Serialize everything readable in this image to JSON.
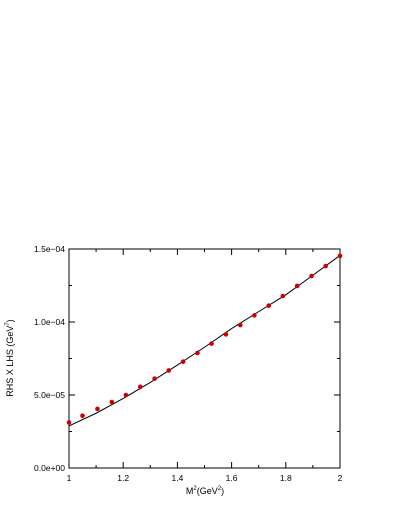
{
  "chart_data": {
    "type": "scatter",
    "xlabel": {
      "base": "M",
      "sup": "2",
      "unit_open": "(GeV",
      "unit_sup": "2",
      "unit_close": ")"
    },
    "ylabel": {
      "text": "RHS X LHS (GeV",
      "sup": "7",
      "close": ")"
    },
    "xlim": [
      1,
      2
    ],
    "ylim": [
      0,
      0.00015
    ],
    "x_ticks": [
      "1",
      "1.2",
      "1.4",
      "1.6",
      "1.8",
      "2"
    ],
    "x_tick_values": [
      1,
      1.2,
      1.4,
      1.6,
      1.8,
      2
    ],
    "y_ticks": [
      "0.0e+00",
      "5.0e−05",
      "1.0e−04",
      "1.5e−04"
    ],
    "y_tick_values": [
      0,
      5e-05,
      0.0001,
      0.00015
    ],
    "grid": false,
    "colors": {
      "points": "#cc0000",
      "line": "#000000",
      "axes": "#000000"
    },
    "series": [
      {
        "kind": "points",
        "x": [
          1.0,
          1.05,
          1.105,
          1.158,
          1.21,
          1.263,
          1.316,
          1.368,
          1.421,
          1.474,
          1.526,
          1.579,
          1.632,
          1.684,
          1.737,
          1.789,
          1.842,
          1.895,
          1.947,
          2.0
        ],
        "y": [
          3.12e-05,
          3.58e-05,
          4.05e-05,
          4.52e-05,
          5e-05,
          5.56e-05,
          6.12e-05,
          6.68e-05,
          7.28e-05,
          7.88e-05,
          8.52e-05,
          9.15e-05,
          9.79e-05,
          0.0001045,
          0.0001112,
          0.0001178,
          0.0001247,
          0.0001315,
          0.0001383,
          0.0001453
        ]
      },
      {
        "kind": "line",
        "x": [
          1.0,
          1.1,
          1.2,
          1.3,
          1.4,
          1.5,
          1.6,
          1.7,
          1.8,
          1.9,
          2.0
        ],
        "y": [
          2.88e-05,
          3.75e-05,
          4.76e-05,
          5.86e-05,
          7.05e-05,
          8.27e-05,
          9.55e-05,
          0.0001071,
          0.0001186,
          0.000132,
          0.0001456
        ]
      }
    ]
  }
}
